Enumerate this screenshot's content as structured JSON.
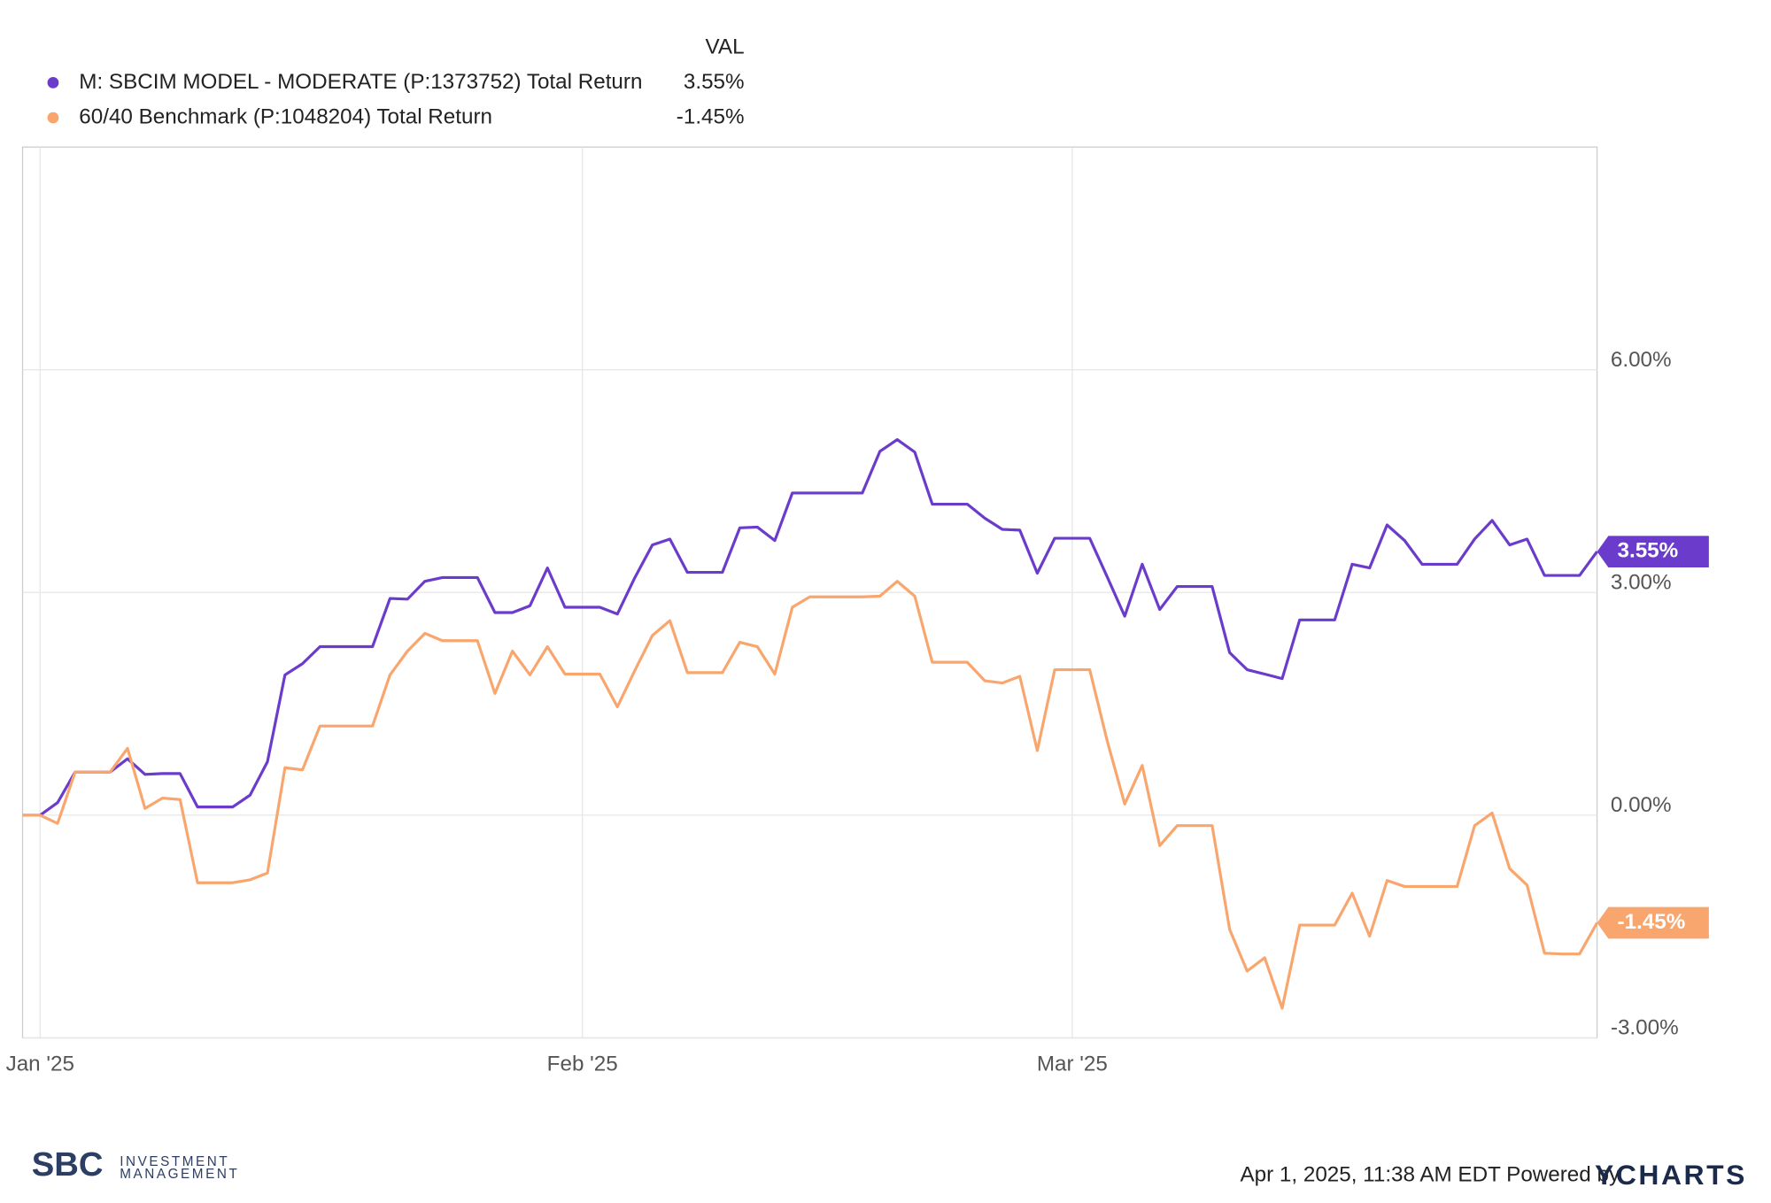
{
  "chart_data": {
    "type": "line",
    "legend_header": "VAL",
    "categories": [
      null,
      "Jan '25",
      null,
      null,
      null,
      null,
      null,
      null,
      null,
      null,
      null,
      null,
      null,
      null,
      null,
      null,
      null,
      null,
      null,
      null,
      null,
      null,
      null,
      null,
      null,
      null,
      null,
      null,
      null,
      null,
      null,
      null,
      "Feb '25",
      null,
      null,
      null,
      null,
      null,
      null,
      null,
      null,
      null,
      null,
      null,
      null,
      null,
      null,
      null,
      null,
      null,
      null,
      null,
      null,
      null,
      null,
      null,
      null,
      null,
      null,
      null,
      "Mar '25",
      null,
      null,
      null,
      null,
      null,
      null,
      null,
      null,
      null,
      null,
      null,
      null,
      null,
      null,
      null,
      null,
      null,
      null,
      null,
      null,
      null,
      null,
      null,
      null,
      null,
      null,
      null,
      null,
      null,
      null
    ],
    "series": [
      {
        "name": "M: SBCIM MODEL - MODERATE (P:1373752) Total Return",
        "color": "#6b3ccc",
        "legend_value": "3.55%",
        "values": [
          0,
          0,
          0.17,
          0.58,
          0.58,
          0.58,
          0.76,
          0.55,
          0.56,
          0.56,
          0.11,
          0.11,
          0.11,
          0.27,
          0.72,
          1.89,
          2.04,
          2.27,
          2.27,
          2.27,
          2.27,
          2.92,
          2.91,
          3.15,
          3.2,
          3.2,
          3.2,
          2.73,
          2.73,
          2.82,
          3.33,
          2.8,
          2.8,
          2.8,
          2.71,
          3.2,
          3.64,
          3.72,
          3.27,
          3.27,
          3.27,
          3.87,
          3.88,
          3.7,
          4.34,
          4.34,
          4.34,
          4.34,
          4.34,
          4.9,
          5.06,
          4.89,
          4.19,
          4.19,
          4.19,
          4,
          3.85,
          3.84,
          3.26,
          3.73,
          3.73,
          3.73,
          3.21,
          2.68,
          3.38,
          2.77,
          3.08,
          3.08,
          3.08,
          2.19,
          1.96,
          1.9,
          1.84,
          2.63,
          2.63,
          2.63,
          3.38,
          3.33,
          3.91,
          3.7,
          3.38,
          3.38,
          3.38,
          3.72,
          3.97,
          3.64,
          3.72,
          3.23,
          3.23,
          3.23,
          3.55
        ]
      },
      {
        "name": "60/40 Benchmark (P:1048204) Total Return",
        "color": "#f9a66e",
        "legend_value": "-1.45%",
        "values": [
          0,
          0,
          -0.11,
          0.58,
          0.58,
          0.58,
          0.9,
          0.09,
          0.23,
          0.21,
          -0.91,
          -0.91,
          -0.91,
          -0.87,
          -0.78,
          0.64,
          0.61,
          1.2,
          1.2,
          1.2,
          1.2,
          1.89,
          2.21,
          2.45,
          2.35,
          2.35,
          2.35,
          1.64,
          2.21,
          1.89,
          2.27,
          1.9,
          1.9,
          1.9,
          1.46,
          1.95,
          2.42,
          2.62,
          1.92,
          1.92,
          1.92,
          2.33,
          2.27,
          1.9,
          2.8,
          2.94,
          2.94,
          2.94,
          2.94,
          2.95,
          3.15,
          2.95,
          2.06,
          2.06,
          2.06,
          1.81,
          1.78,
          1.87,
          0.87,
          1.96,
          1.96,
          1.96,
          1,
          0.15,
          0.67,
          -0.41,
          -0.14,
          -0.14,
          -0.14,
          -1.54,
          -2.1,
          -1.92,
          -2.6,
          -1.48,
          -1.48,
          -1.48,
          -1.05,
          -1.63,
          -0.88,
          -0.96,
          -0.96,
          -0.96,
          -0.96,
          -0.14,
          0.03,
          -0.72,
          -0.94,
          -1.86,
          -1.87,
          -1.87,
          -1.45
        ]
      }
    ],
    "ylim": [
      -3,
      9
    ],
    "yticks": [
      {
        "value": -3,
        "label": "-3.00%"
      },
      {
        "value": 0,
        "label": "0.00%"
      },
      {
        "value": 3,
        "label": "3.00%"
      },
      {
        "value": 6,
        "label": "6.00%"
      }
    ],
    "grid": true
  },
  "footer": {
    "timestamp": "Apr 1, 2025, 11:38 AM EDT Powered by",
    "brand": "YCHARTS",
    "logo": {
      "name": "SBC",
      "line1": "INVESTMENT",
      "line2": "MANAGEMENT"
    }
  }
}
